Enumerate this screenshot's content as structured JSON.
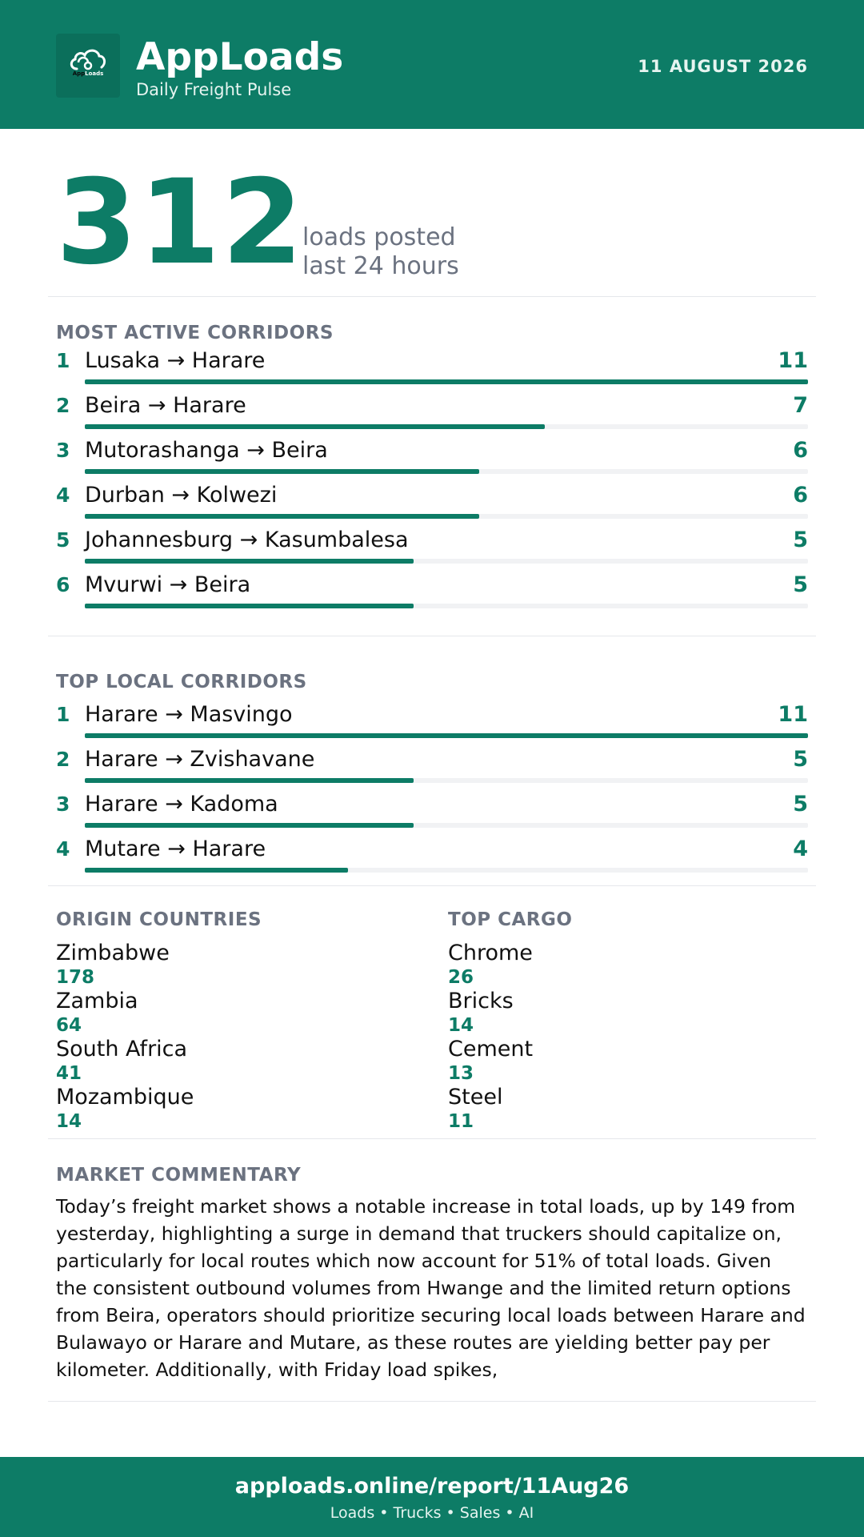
{
  "header": {
    "app_name": "AppLoads",
    "subtitle": "Daily Freight Pulse",
    "date": "11 AUGUST 2026",
    "logo_icon": "cloud-icon",
    "logo_word_1": "App",
    "logo_word_2": "Loads"
  },
  "hero": {
    "value": "312",
    "caption_line1": "loads posted",
    "caption_line2": "last 24 hours"
  },
  "most_active": {
    "title": "MOST ACTIVE CORRIDORS",
    "rows": [
      {
        "rank": "1",
        "route": "Lusaka → Harare",
        "count": "11",
        "share": 1.0
      },
      {
        "rank": "2",
        "route": "Beira → Harare",
        "count": "7",
        "share": 0.636
      },
      {
        "rank": "3",
        "route": "Mutorashanga → Beira",
        "count": "6",
        "share": 0.545
      },
      {
        "rank": "4",
        "route": "Durban → Kolwezi",
        "count": "6",
        "share": 0.545
      },
      {
        "rank": "5",
        "route": "Johannesburg → Kasumbalesa",
        "count": "5",
        "share": 0.455
      },
      {
        "rank": "6",
        "route": "Mvurwi → Beira",
        "count": "5",
        "share": 0.455
      }
    ]
  },
  "top_local": {
    "title": "TOP LOCAL CORRIDORS",
    "rows": [
      {
        "rank": "1",
        "route": "Harare → Masvingo",
        "count": "11",
        "share": 1.0
      },
      {
        "rank": "2",
        "route": "Harare → Zvishavane",
        "count": "5",
        "share": 0.455
      },
      {
        "rank": "3",
        "route": "Harare → Kadoma",
        "count": "5",
        "share": 0.455
      },
      {
        "rank": "4",
        "route": "Mutare → Harare",
        "count": "4",
        "share": 0.364
      }
    ]
  },
  "origin_countries": {
    "title": "ORIGIN COUNTRIES",
    "items": [
      {
        "name": "Zimbabwe",
        "value": "178"
      },
      {
        "name": "Zambia",
        "value": "64"
      },
      {
        "name": "South Africa",
        "value": "41"
      },
      {
        "name": "Mozambique",
        "value": "14"
      }
    ]
  },
  "top_cargo": {
    "title": "TOP CARGO",
    "items": [
      {
        "name": "Chrome",
        "value": "26"
      },
      {
        "name": "Bricks",
        "value": "14"
      },
      {
        "name": "Cement",
        "value": "13"
      },
      {
        "name": "Steel",
        "value": "11"
      }
    ]
  },
  "commentary": {
    "title": "MARKET COMMENTARY",
    "text": "Today’s freight market shows a notable increase in total loads, up by 149 from yesterday, highlighting a surge in demand that truckers should capitalize on, particularly for local routes which now account for 51% of total loads. Given the consistent outbound volumes from Hwange and the limited return options from Beira, operators should prioritize securing local loads between Harare and Bulawayo or Harare and Mutare, as these routes are yielding better pay per kilometer. Additionally, with Friday load spikes,"
  },
  "footer": {
    "url": "apploads.online/report/11Aug26",
    "tagline": "Loads • Trucks • Sales • AI"
  },
  "colors": {
    "brand": "#0d7c66",
    "muted": "#6b7280",
    "track": "#f1f2f4"
  }
}
